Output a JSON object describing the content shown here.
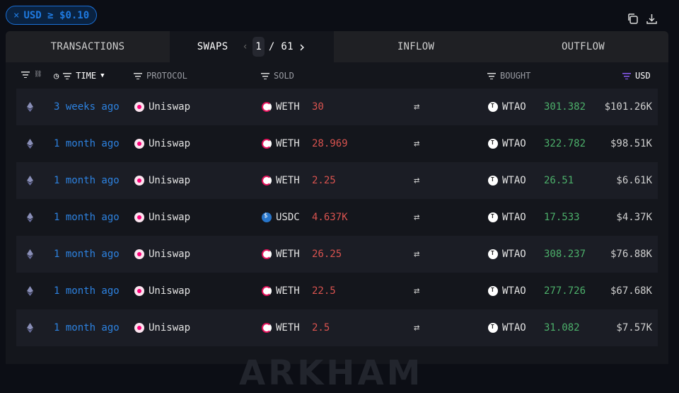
{
  "filter_chip": {
    "label": "USD ≥ $0.10",
    "close": "×"
  },
  "toolbar": {
    "icons": [
      "copy-icon",
      "download-icon"
    ]
  },
  "tabs": [
    {
      "label": "TRANSACTIONS"
    },
    {
      "label": "SWAPS",
      "active": true
    },
    {
      "label": "INFLOW"
    },
    {
      "label": "OUTFLOW"
    }
  ],
  "pagination": {
    "current": "1",
    "total": "/ 61"
  },
  "columns": {
    "time": "TIME",
    "protocol": "PROTOCOL",
    "sold": "SOLD",
    "bought": "BOUGHT",
    "usd": "USD"
  },
  "colors": {
    "accent": "#1f7ae0",
    "sold": "#d9534f",
    "bought": "#4caf6a",
    "usd_filter": "#8b5cf6"
  },
  "rows": [
    {
      "time": "3 weeks ago",
      "protocol": "Uniswap",
      "sold_token": "WETH",
      "sold_amount": "30",
      "bought_token": "WTAO",
      "bought_amount": "301.382",
      "usd": "$101.26K"
    },
    {
      "time": "1 month ago",
      "protocol": "Uniswap",
      "sold_token": "WETH",
      "sold_amount": "28.969",
      "bought_token": "WTAO",
      "bought_amount": "322.782",
      "usd": "$98.51K"
    },
    {
      "time": "1 month ago",
      "protocol": "Uniswap",
      "sold_token": "WETH",
      "sold_amount": "2.25",
      "bought_token": "WTAO",
      "bought_amount": "26.51",
      "usd": "$6.61K"
    },
    {
      "time": "1 month ago",
      "protocol": "Uniswap",
      "sold_token": "USDC",
      "sold_amount": "4.637K",
      "bought_token": "WTAO",
      "bought_amount": "17.533",
      "usd": "$4.37K"
    },
    {
      "time": "1 month ago",
      "protocol": "Uniswap",
      "sold_token": "WETH",
      "sold_amount": "26.25",
      "bought_token": "WTAO",
      "bought_amount": "308.237",
      "usd": "$76.88K"
    },
    {
      "time": "1 month ago",
      "protocol": "Uniswap",
      "sold_token": "WETH",
      "sold_amount": "22.5",
      "bought_token": "WTAO",
      "bought_amount": "277.726",
      "usd": "$67.68K"
    },
    {
      "time": "1 month ago",
      "protocol": "Uniswap",
      "sold_token": "WETH",
      "sold_amount": "2.5",
      "bought_token": "WTAO",
      "bought_amount": "31.082",
      "usd": "$7.57K"
    }
  ],
  "swap_symbol": "⇄",
  "watermark": "ARKHAM"
}
